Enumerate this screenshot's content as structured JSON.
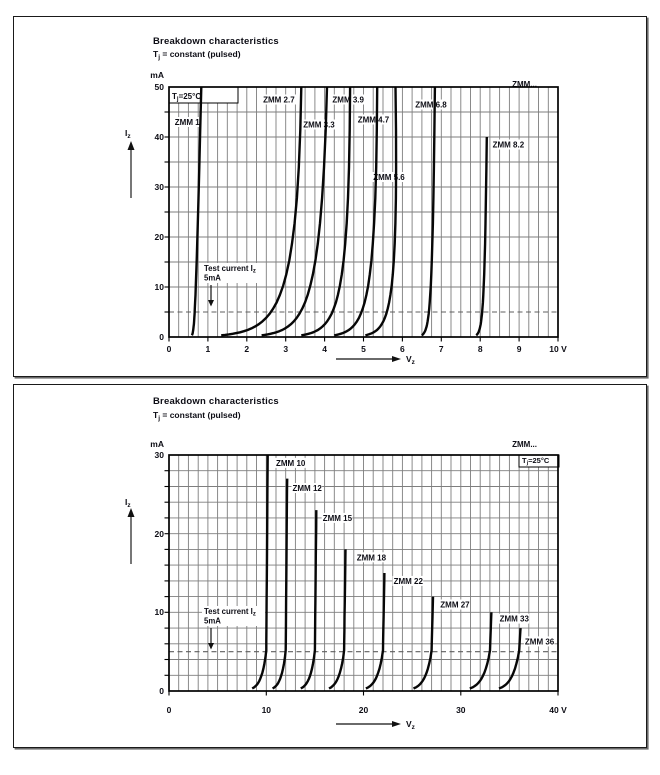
{
  "chart_data": [
    {
      "type": "line",
      "title": "Breakdown characteristics",
      "subtitle": {
        "pre": "T",
        "sub": "j",
        "post": " = constant (pulsed)"
      },
      "corner_label": "ZMM...",
      "temp_label": {
        "pre": "T",
        "sub": "j",
        "post": "=25°C"
      },
      "x_axis": {
        "label": {
          "pre": "V",
          "sub": "z"
        },
        "unit": "V",
        "min": 0,
        "max": 10,
        "tick_step": 1,
        "grid_step": 0.25,
        "tick_labels": [
          "0",
          "1",
          "2",
          "3",
          "4",
          "5",
          "6",
          "7",
          "8",
          "9",
          "10 V"
        ]
      },
      "y_axis": {
        "label": {
          "pre": "I",
          "sub": "z"
        },
        "unit": "mA",
        "min": 0,
        "max": 50,
        "tick_step": 10,
        "grid_step": 5,
        "tick_labels": [
          "0",
          "10",
          "20",
          "30",
          "40",
          "50"
        ]
      },
      "test_current": {
        "line1_pre": "Test current I",
        "line1_sub": "z",
        "line2": "5mA",
        "value_mA": 5
      },
      "legend": "grid on; dashed horizontal line at test current 5 mA",
      "series": [
        {
          "name": "ZMM 1",
          "vz_at_test_v": 0.66,
          "slope_v_per_ma": 0.00267,
          "knee_softness_v": 0.0217,
          "i_max_ma": 50,
          "model": "smooth",
          "label_at": [
            0.15,
            43
          ]
        },
        {
          "name": "ZMM 2.7",
          "vz_at_test_v": 2.62,
          "slope_v_per_ma": -0.008,
          "knee_softness_v": 0.495,
          "i_max_ma": 50,
          "model": "smooth",
          "label_at": [
            2.42,
            47.5
          ]
        },
        {
          "name": "ZMM 3.3",
          "vz_at_test_v": 3.38,
          "slope_v_per_ma": -0.0045,
          "knee_softness_v": 0.384,
          "i_max_ma": 50,
          "model": "smooth",
          "label_at": [
            3.45,
            42.5
          ]
        },
        {
          "name": "ZMM 3.9",
          "vz_at_test_v": 4.2,
          "slope_v_per_ma": -0.0058,
          "knee_softness_v": 0.311,
          "i_max_ma": 50,
          "model": "smooth",
          "label_at": [
            4.2,
            47.5
          ]
        },
        {
          "name": "ZMM 4.7",
          "vz_at_test_v": 4.95,
          "slope_v_per_ma": -0.005,
          "knee_softness_v": 0.272,
          "i_max_ma": 50,
          "model": "smooth",
          "label_at": [
            4.85,
            43.5
          ]
        },
        {
          "name": "ZMM 5.6",
          "vz_at_test_v": 5.6,
          "slope_v_per_ma": -0.0062,
          "knee_softness_v": 0.218,
          "i_max_ma": 50,
          "model": "smooth",
          "label_at": [
            5.25,
            32
          ]
        },
        {
          "name": "ZMM 6.8",
          "vz_at_test_v": 6.68,
          "slope_v_per_ma": 0.0,
          "knee_softness_v": 0.068,
          "i_max_ma": 50,
          "model": "smooth",
          "label_at": [
            6.33,
            46.5
          ]
        },
        {
          "name": "ZMM 8.2",
          "vz_at_test_v": 8.05,
          "slope_v_per_ma": 0.0,
          "knee_softness_v": 0.057,
          "i_max_ma": 40,
          "model": "smooth",
          "label_at": [
            8.32,
            38.5
          ]
        }
      ]
    },
    {
      "type": "line",
      "title": "Breakdown characteristics",
      "subtitle": {
        "pre": "T",
        "sub": "j",
        "post": " = constant (pulsed)"
      },
      "corner_label": "ZMM...",
      "temp_label": {
        "pre": "T",
        "sub": "j",
        "post": "=25°C"
      },
      "x_axis": {
        "label": {
          "pre": "V",
          "sub": "z"
        },
        "unit": "V",
        "min": 0,
        "max": 40,
        "tick_step": 10,
        "grid_step": 1,
        "tick_labels": [
          "0",
          "10",
          "20",
          "30",
          "40 V"
        ]
      },
      "y_axis": {
        "label": {
          "pre": "I",
          "sub": "z"
        },
        "unit": "mA",
        "min": 0,
        "max": 30,
        "tick_step": 10,
        "grid_step": 2,
        "tick_labels": [
          "0",
          "10",
          "20",
          "30"
        ]
      },
      "test_current": {
        "line1_pre": "Test current I",
        "line1_sub": "z",
        "line2": "5mA",
        "value_mA": 5
      },
      "legend": "grid on; dashed horizontal line at test current 5 mA",
      "series": [
        {
          "name": "ZMM 10",
          "vz_at_test_v": 10,
          "slope_v_per_ma": 0.006,
          "knee_softness_v": 0.526,
          "i_max_ma": 30,
          "model": "elbow",
          "label_at": [
            11,
            29
          ]
        },
        {
          "name": "ZMM 12",
          "vz_at_test_v": 12,
          "slope_v_per_ma": 0.0068,
          "knee_softness_v": 0.489,
          "i_max_ma": 27,
          "model": "elbow",
          "label_at": [
            12.7,
            25.8
          ]
        },
        {
          "name": "ZMM 15",
          "vz_at_test_v": 15,
          "slope_v_per_ma": 0.0083,
          "knee_softness_v": 0.526,
          "i_max_ma": 23,
          "model": "elbow",
          "label_at": [
            15.8,
            22
          ]
        },
        {
          "name": "ZMM 18",
          "vz_at_test_v": 18,
          "slope_v_per_ma": 0.0115,
          "knee_softness_v": 0.564,
          "i_max_ma": 18,
          "model": "elbow",
          "label_at": [
            19.3,
            17
          ]
        },
        {
          "name": "ZMM 22",
          "vz_at_test_v": 22,
          "slope_v_per_ma": 0.015,
          "knee_softness_v": 0.639,
          "i_max_ma": 15,
          "model": "elbow",
          "label_at": [
            23.1,
            14
          ]
        },
        {
          "name": "ZMM 27",
          "vz_at_test_v": 27,
          "slope_v_per_ma": 0.021,
          "knee_softness_v": 0.677,
          "i_max_ma": 12,
          "model": "elbow",
          "label_at": [
            27.9,
            11
          ]
        },
        {
          "name": "ZMM 33",
          "vz_at_test_v": 33,
          "slope_v_per_ma": 0.03,
          "knee_softness_v": 0.752,
          "i_max_ma": 10,
          "model": "elbow",
          "label_at": [
            34,
            9.2
          ]
        },
        {
          "name": "ZMM 36",
          "vz_at_test_v": 36,
          "slope_v_per_ma": 0.05,
          "knee_softness_v": 0.752,
          "i_max_ma": 8,
          "model": "elbow",
          "label_at": [
            36.6,
            6.3
          ]
        }
      ]
    }
  ]
}
